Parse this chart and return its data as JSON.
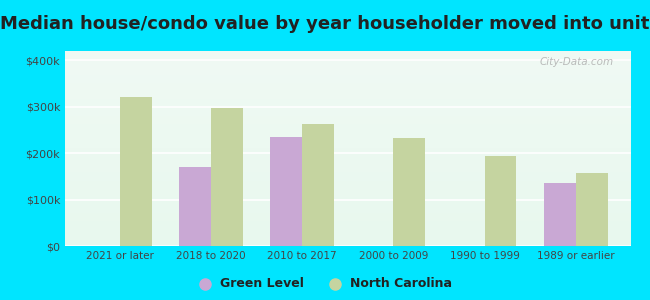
{
  "title": "Median house/condo value by year householder moved into unit",
  "categories": [
    "2021 or later",
    "2018 to 2020",
    "2010 to 2017",
    "2000 to 2009",
    "1990 to 1999",
    "1989 or earlier"
  ],
  "green_level": [
    null,
    170000,
    235000,
    null,
    null,
    135000
  ],
  "north_carolina": [
    320000,
    297000,
    263000,
    233000,
    193000,
    158000
  ],
  "bar_width": 0.35,
  "green_color": "#c9a8d4",
  "nc_color": "#c5d4a0",
  "bg_gradient_top": "#e8f8ee",
  "bg_gradient_bottom": "#f0faf4",
  "title_fontsize": 13,
  "outer_bg": "#00e5ff",
  "ylim": [
    0,
    420000
  ],
  "yticks": [
    0,
    100000,
    200000,
    300000,
    400000
  ],
  "ylabel_labels": [
    "$0",
    "$100k",
    "$200k",
    "$300k",
    "$400k"
  ],
  "legend_labels": [
    "Green Level",
    "North Carolina"
  ],
  "watermark": "City-Data.com"
}
